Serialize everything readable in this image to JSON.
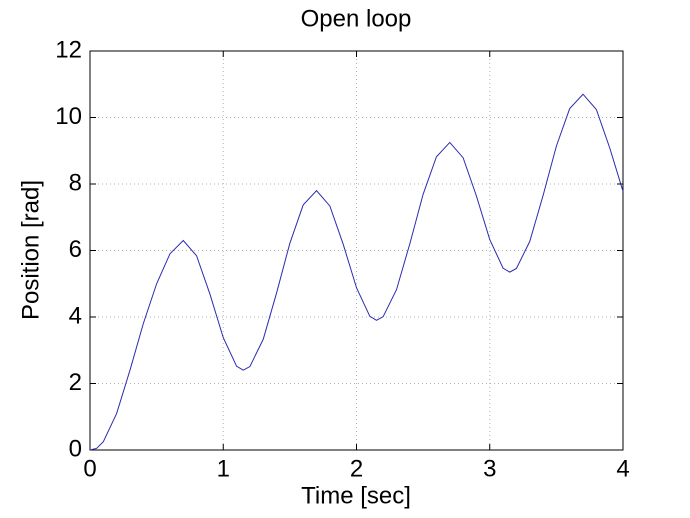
{
  "chart_data": {
    "type": "line",
    "title": "Open loop",
    "x_label": "Time [sec]",
    "y_label": "Position [rad]",
    "x": [
      0,
      0.05,
      0.1,
      0.2,
      0.3,
      0.4,
      0.5,
      0.6,
      0.7,
      0.8,
      0.9,
      1.0,
      1.1,
      1.15,
      1.2,
      1.3,
      1.4,
      1.5,
      1.6,
      1.7,
      1.8,
      1.9,
      2.0,
      2.1,
      2.15,
      2.2,
      2.3,
      2.4,
      2.5,
      2.6,
      2.7,
      2.8,
      2.9,
      3.0,
      3.1,
      3.15,
      3.2,
      3.3,
      3.4,
      3.5,
      3.6,
      3.7,
      3.8,
      3.9,
      4.0
    ],
    "series": [
      {
        "color": "#2b2bb0",
        "values": [
          0,
          0.05,
          0.25,
          1.1,
          2.4,
          3.8,
          5.0,
          5.9,
          6.3,
          5.84,
          4.69,
          3.38,
          2.52,
          2.4,
          2.51,
          3.33,
          4.72,
          6.22,
          7.37,
          7.8,
          7.34,
          6.19,
          4.88,
          4.02,
          3.9,
          4.01,
          4.82,
          6.2,
          7.69,
          8.82,
          9.25,
          8.79,
          7.64,
          6.33,
          5.47,
          5.35,
          5.46,
          6.27,
          7.65,
          9.14,
          10.27,
          10.7,
          10.24,
          9.09,
          7.78
        ]
      }
    ],
    "xlim": [
      0,
      4
    ],
    "xticks": [
      0,
      1,
      2,
      3,
      4
    ],
    "ylim": [
      0,
      12
    ],
    "yticks": [
      0,
      2,
      4,
      6,
      8,
      10,
      12
    ],
    "grid": true
  }
}
